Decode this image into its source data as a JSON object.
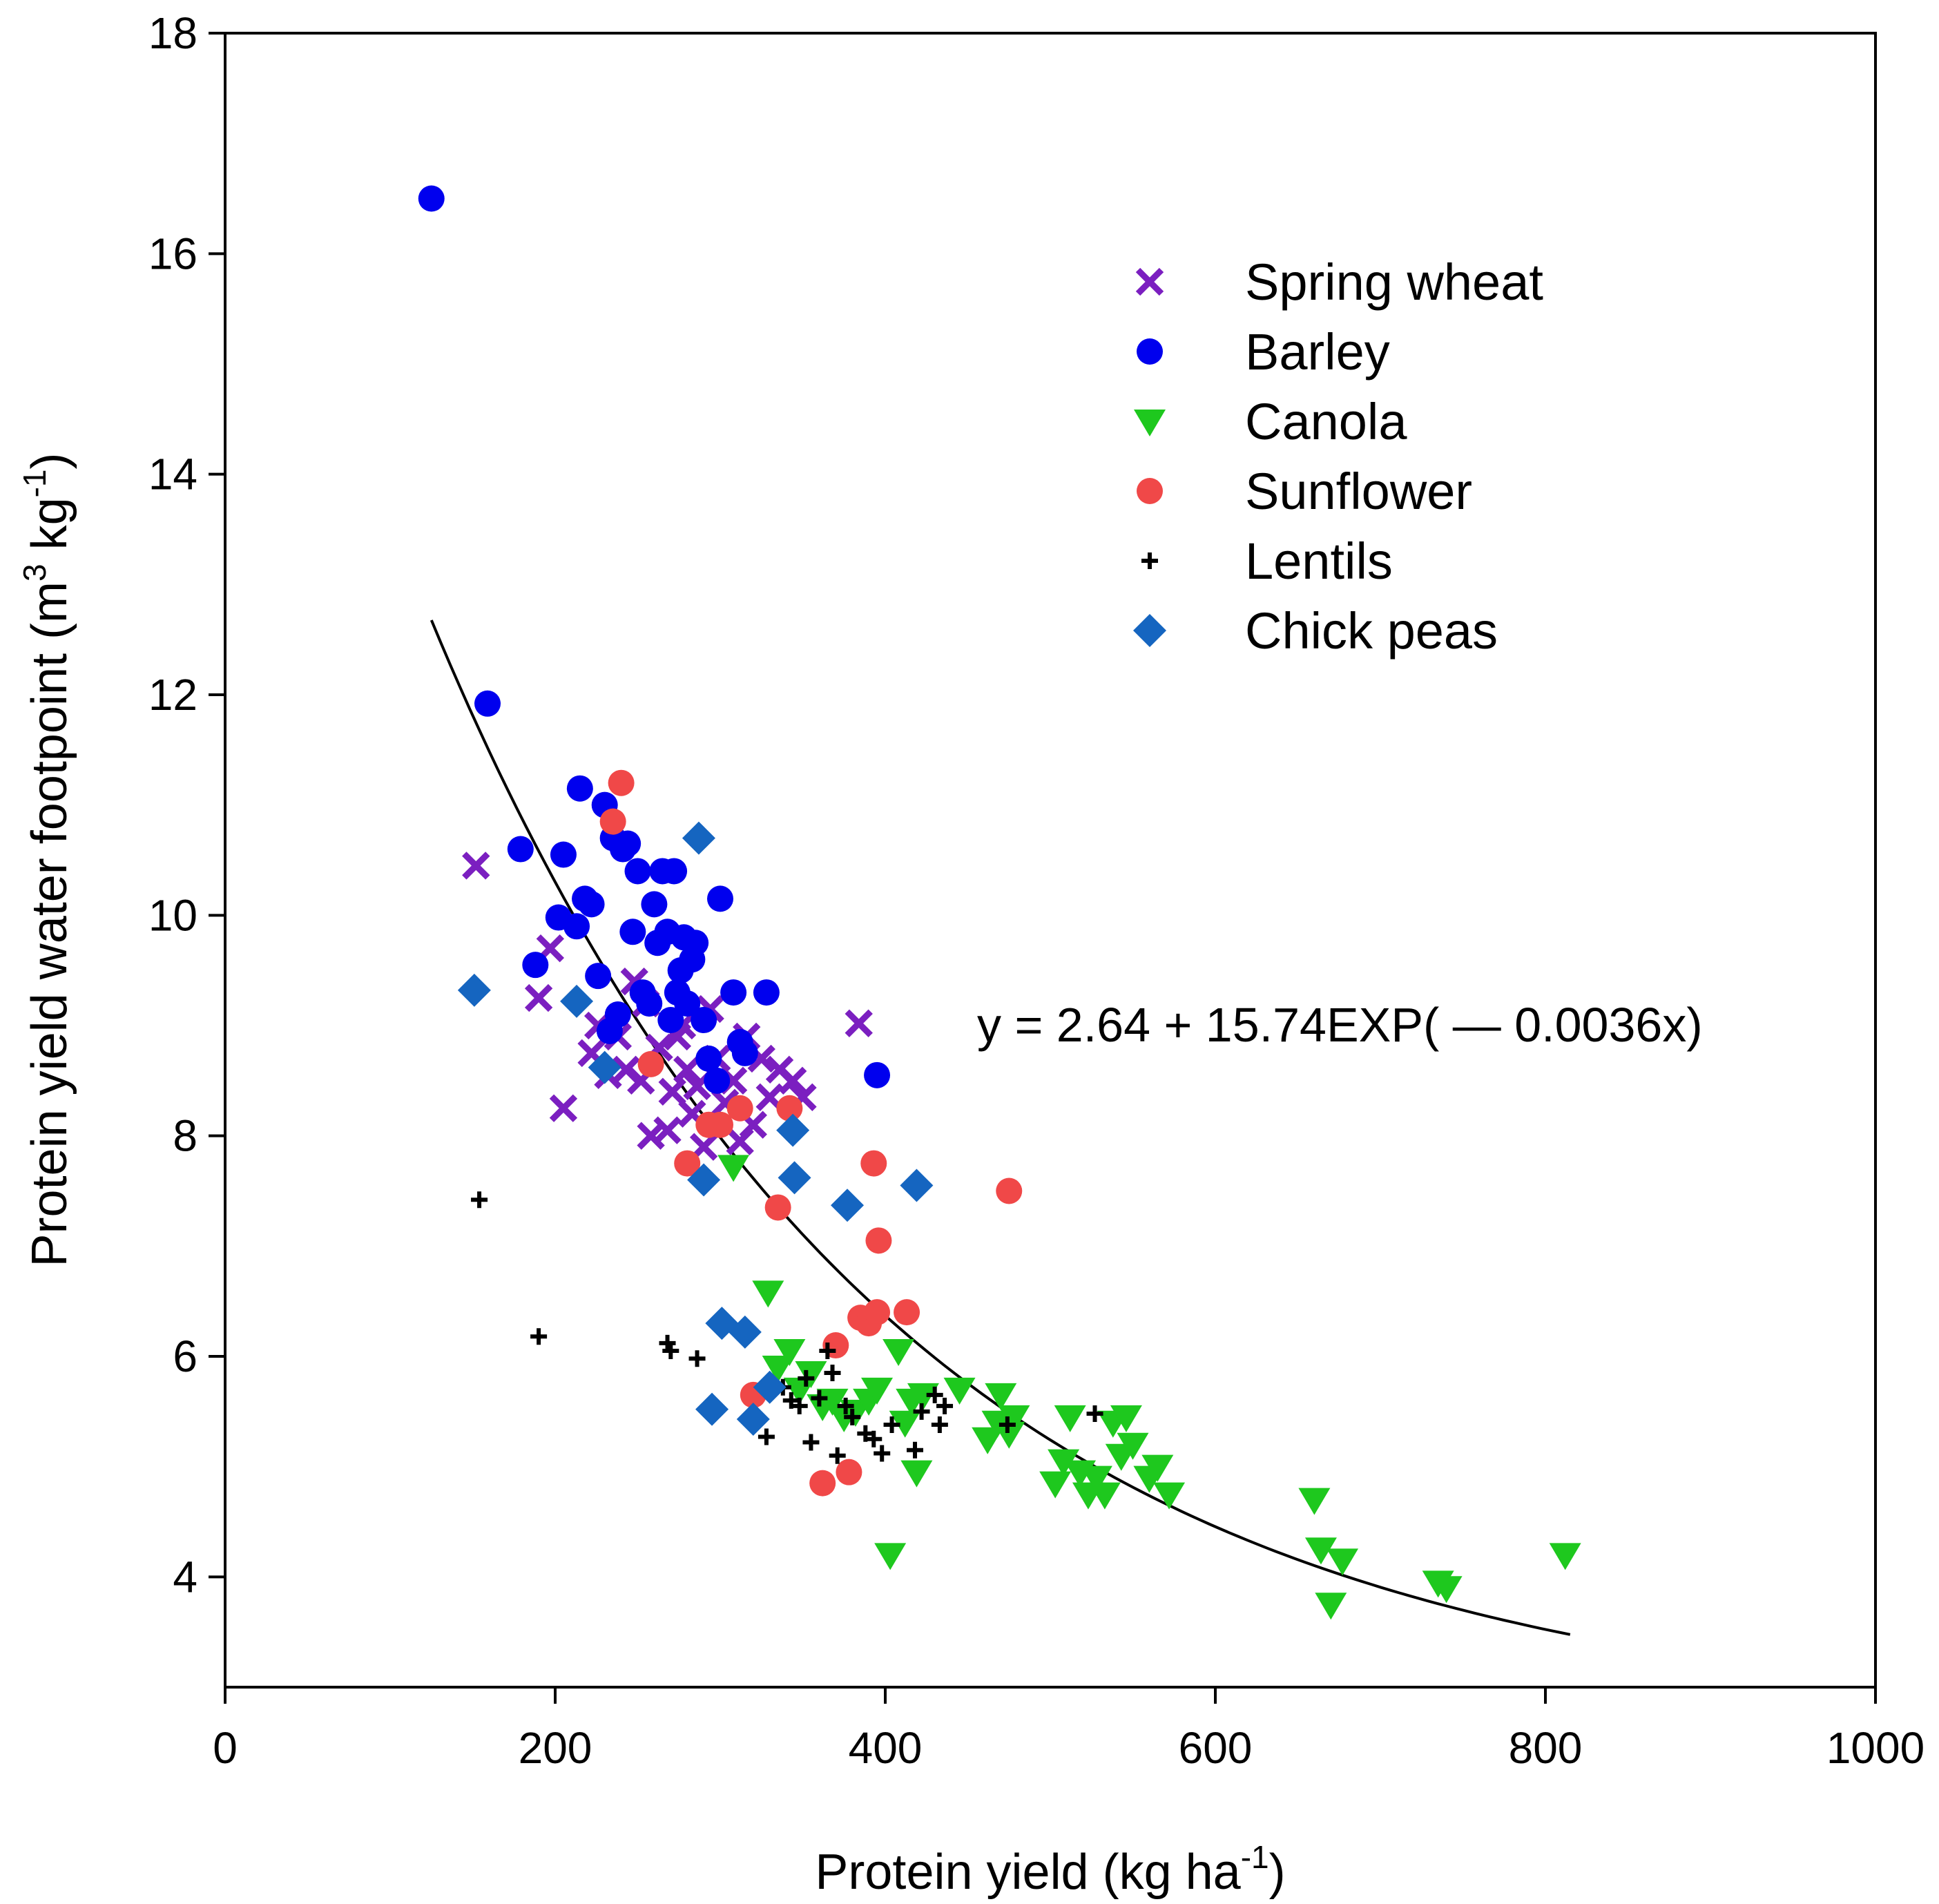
{
  "chart_data": {
    "type": "scatter",
    "xlabel": "Protein yield (kg ha",
    "xlabel_sup": "-1",
    "xlabel_tail": ")",
    "ylabel": "Protein yield water footpoint (m",
    "ylabel_sup1": "3",
    "ylabel_mid": " kg",
    "ylabel_sup2": "-1",
    "ylabel_tail": ")",
    "xlim": [
      0,
      1000
    ],
    "ylim": [
      3,
      18
    ],
    "x_ticks": [
      0,
      200,
      400,
      600,
      800,
      1000
    ],
    "y_ticks": [
      4,
      6,
      8,
      10,
      12,
      14,
      16,
      18
    ],
    "legend_position": "top-right",
    "equation": "y = 2.64 + 15.74EXP( — 0.0036x)",
    "fit": {
      "a": 2.64,
      "b": 15.74,
      "k": 0.0036,
      "x_range": [
        125,
        815
      ],
      "color": "#000000"
    },
    "series": [
      {
        "name": "Spring wheat",
        "marker": "x",
        "color": "#7b1fc0",
        "points": [
          [
            152,
            10.45
          ],
          [
            190,
            9.25
          ],
          [
            197,
            9.7
          ],
          [
            205,
            8.25
          ],
          [
            222,
            8.75
          ],
          [
            226,
            9.0
          ],
          [
            232,
            8.55
          ],
          [
            238,
            8.9
          ],
          [
            243,
            8.6
          ],
          [
            248,
            9.4
          ],
          [
            252,
            8.5
          ],
          [
            255,
            9.2
          ],
          [
            258,
            8.0
          ],
          [
            263,
            8.8
          ],
          [
            268,
            8.05
          ],
          [
            271,
            8.4
          ],
          [
            274,
            8.9
          ],
          [
            277,
            9.0
          ],
          [
            280,
            8.6
          ],
          [
            283,
            8.2
          ],
          [
            286,
            8.45
          ],
          [
            290,
            7.9
          ],
          [
            294,
            9.15
          ],
          [
            298,
            8.7
          ],
          [
            303,
            8.3
          ],
          [
            308,
            8.5
          ],
          [
            312,
            7.95
          ],
          [
            316,
            8.9
          ],
          [
            320,
            8.1
          ],
          [
            325,
            8.7
          ],
          [
            330,
            8.35
          ],
          [
            336,
            8.6
          ],
          [
            344,
            8.5
          ],
          [
            350,
            8.35
          ],
          [
            384,
            9.02
          ]
        ]
      },
      {
        "name": "Barley",
        "marker": "circle",
        "color": "#0000ee",
        "points": [
          [
            125,
            16.5
          ],
          [
            159,
            11.92
          ],
          [
            179,
            10.6
          ],
          [
            188,
            9.55
          ],
          [
            202,
            9.98
          ],
          [
            205,
            10.55
          ],
          [
            213,
            9.9
          ],
          [
            215,
            11.15
          ],
          [
            218,
            10.15
          ],
          [
            222,
            10.1
          ],
          [
            226,
            9.45
          ],
          [
            230,
            11.0
          ],
          [
            233,
            8.95
          ],
          [
            235,
            10.7
          ],
          [
            238,
            9.1
          ],
          [
            241,
            10.6
          ],
          [
            244,
            10.65
          ],
          [
            247,
            9.85
          ],
          [
            250,
            10.4
          ],
          [
            253,
            9.3
          ],
          [
            257,
            9.2
          ],
          [
            260,
            10.1
          ],
          [
            262,
            9.75
          ],
          [
            265,
            10.4
          ],
          [
            268,
            9.85
          ],
          [
            270,
            9.05
          ],
          [
            272,
            10.4
          ],
          [
            274,
            9.3
          ],
          [
            276,
            9.5
          ],
          [
            278,
            9.8
          ],
          [
            280,
            9.2
          ],
          [
            283,
            9.6
          ],
          [
            285,
            9.75
          ],
          [
            290,
            9.05
          ],
          [
            293,
            8.7
          ],
          [
            298,
            8.5
          ],
          [
            300,
            10.15
          ],
          [
            308,
            9.3
          ],
          [
            312,
            8.85
          ],
          [
            315,
            8.75
          ],
          [
            328,
            9.3
          ],
          [
            395,
            8.55
          ]
        ]
      },
      {
        "name": "Canola",
        "marker": "triangle-down",
        "color": "#1ec81e",
        "points": [
          [
            308,
            7.72
          ],
          [
            329,
            6.58
          ],
          [
            335,
            5.9
          ],
          [
            342,
            6.05
          ],
          [
            348,
            5.7
          ],
          [
            355,
            5.85
          ],
          [
            362,
            5.55
          ],
          [
            368,
            5.6
          ],
          [
            375,
            5.45
          ],
          [
            382,
            5.5
          ],
          [
            390,
            5.6
          ],
          [
            395,
            5.7
          ],
          [
            403,
            4.2
          ],
          [
            408,
            6.05
          ],
          [
            412,
            5.4
          ],
          [
            416,
            5.6
          ],
          [
            419,
            4.95
          ],
          [
            423,
            5.65
          ],
          [
            445,
            5.7
          ],
          [
            462,
            5.25
          ],
          [
            468,
            5.4
          ],
          [
            470,
            5.65
          ],
          [
            475,
            5.3
          ],
          [
            478,
            5.45
          ],
          [
            503,
            4.85
          ],
          [
            508,
            5.05
          ],
          [
            512,
            5.45
          ],
          [
            518,
            4.95
          ],
          [
            523,
            4.75
          ],
          [
            528,
            4.9
          ],
          [
            533,
            4.75
          ],
          [
            538,
            5.4
          ],
          [
            543,
            5.1
          ],
          [
            546,
            5.45
          ],
          [
            550,
            5.2
          ],
          [
            560,
            4.9
          ],
          [
            565,
            5.0
          ],
          [
            572,
            4.75
          ],
          [
            660,
            4.7
          ],
          [
            664,
            4.25
          ],
          [
            670,
            3.75
          ],
          [
            677,
            4.15
          ],
          [
            735,
            3.95
          ],
          [
            740,
            3.9
          ],
          [
            812,
            4.2
          ]
        ]
      },
      {
        "name": "Sunflower",
        "marker": "circle",
        "color": "#f04848",
        "points": [
          [
            235,
            10.85
          ],
          [
            240,
            11.2
          ],
          [
            258,
            8.65
          ],
          [
            280,
            7.75
          ],
          [
            293,
            8.1
          ],
          [
            300,
            8.1
          ],
          [
            312,
            8.25
          ],
          [
            320,
            5.65
          ],
          [
            335,
            7.35
          ],
          [
            342,
            8.25
          ],
          [
            362,
            4.85
          ],
          [
            370,
            6.1
          ],
          [
            378,
            4.95
          ],
          [
            385,
            6.35
          ],
          [
            390,
            6.3
          ],
          [
            393,
            7.75
          ],
          [
            395,
            6.4
          ],
          [
            396,
            7.05
          ],
          [
            413,
            6.4
          ],
          [
            475,
            7.5
          ]
        ]
      },
      {
        "name": "Lentils",
        "marker": "plus",
        "color": "#000000",
        "points": [
          [
            154,
            7.42
          ],
          [
            190,
            6.18
          ],
          [
            268,
            6.12
          ],
          [
            270,
            6.05
          ],
          [
            286,
            5.98
          ],
          [
            328,
            5.27
          ],
          [
            338,
            5.72
          ],
          [
            343,
            5.6
          ],
          [
            348,
            5.55
          ],
          [
            352,
            5.8
          ],
          [
            355,
            5.22
          ],
          [
            360,
            5.62
          ],
          [
            365,
            6.05
          ],
          [
            368,
            5.85
          ],
          [
            371,
            5.1
          ],
          [
            376,
            5.55
          ],
          [
            380,
            5.45
          ],
          [
            388,
            5.3
          ],
          [
            393,
            5.25
          ],
          [
            398,
            5.12
          ],
          [
            404,
            5.38
          ],
          [
            418,
            5.15
          ],
          [
            422,
            5.5
          ],
          [
            430,
            5.65
          ],
          [
            433,
            5.38
          ],
          [
            436,
            5.55
          ],
          [
            474,
            5.38
          ],
          [
            527,
            5.48
          ]
        ]
      },
      {
        "name": "Chick peas",
        "marker": "diamond",
        "color": "#1565c0",
        "points": [
          [
            151,
            9.32
          ],
          [
            213,
            9.22
          ],
          [
            230,
            8.62
          ],
          [
            287,
            10.7
          ],
          [
            290,
            7.6
          ],
          [
            295,
            5.52
          ],
          [
            301,
            6.3
          ],
          [
            315,
            6.22
          ],
          [
            320,
            5.43
          ],
          [
            330,
            5.72
          ],
          [
            344,
            8.05
          ],
          [
            345,
            7.62
          ],
          [
            377,
            7.37
          ],
          [
            419,
            7.55
          ]
        ]
      }
    ]
  }
}
